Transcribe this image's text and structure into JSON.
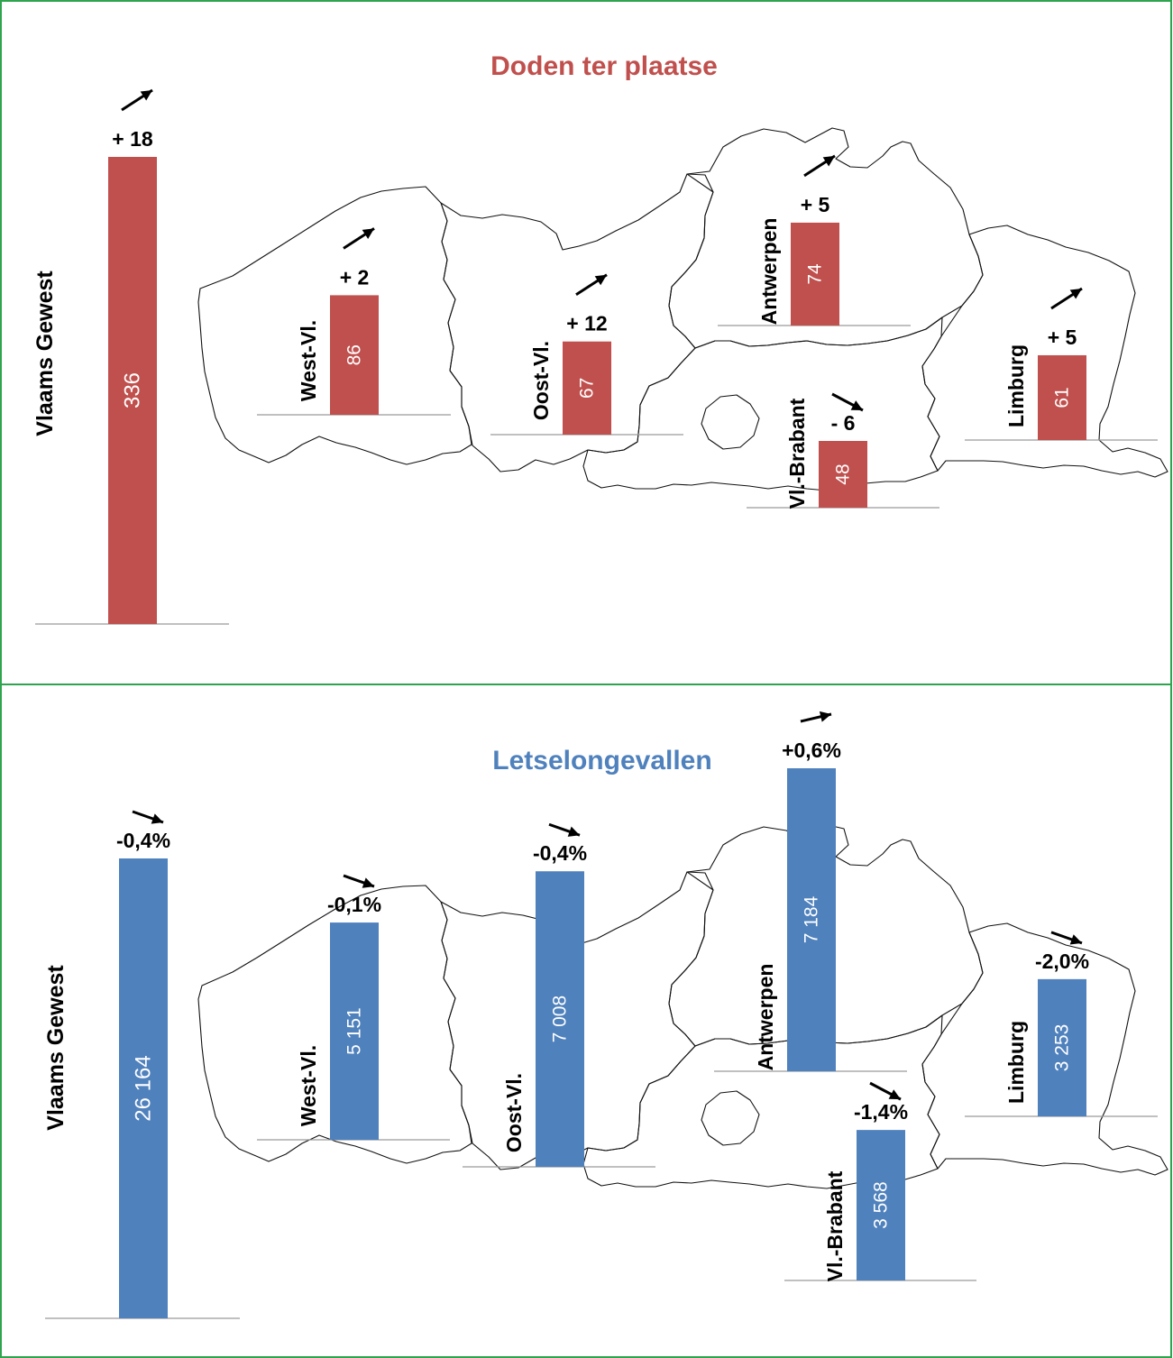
{
  "colors": {
    "deaths": "#c0504d",
    "injuries": "#4f81bd",
    "frame": "#2ea44f"
  },
  "chart_data": [
    {
      "type": "bar",
      "title": "Doden ter plaatse",
      "categories": [
        "Vlaams Gewest",
        "West-Vl.",
        "Oost-Vl.",
        "Antwerpen",
        "Vl.-Brabant",
        "Limburg"
      ],
      "values": [
        336,
        86,
        67,
        74,
        48,
        61
      ],
      "value_labels": [
        "336",
        "86",
        "67",
        "74",
        "48",
        "61"
      ],
      "changes": [
        "+ 18",
        "+ 2",
        "+ 12",
        "+ 5",
        "- 6",
        "+ 5"
      ],
      "trend_icons": [
        "arrow-up-right-icon",
        "arrow-up-right-icon",
        "arrow-up-right-icon",
        "arrow-up-right-icon",
        "arrow-down-right-icon",
        "arrow-up-right-icon"
      ],
      "ylim": [
        0,
        336
      ]
    },
    {
      "type": "bar",
      "title": "Letselongevallen",
      "categories": [
        "Vlaams Gewest",
        "West-Vl.",
        "Oost-Vl.",
        "Antwerpen",
        "Vl.-Brabant",
        "Limburg"
      ],
      "values": [
        26164,
        5151,
        7008,
        7184,
        3568,
        3253
      ],
      "value_labels": [
        "26 164",
        "5 151",
        "7 008",
        "7 184",
        "3 568",
        "3 253"
      ],
      "changes": [
        "-0,4%",
        "-0,1%",
        "-0,4%",
        "+0,6%",
        "-1,4%",
        "-2,0%"
      ],
      "trend_icons": [
        "arrow-slight-down-icon",
        "arrow-slight-down-icon",
        "arrow-slight-down-icon",
        "arrow-slight-up-icon",
        "arrow-down-right-icon",
        "arrow-slight-down-icon"
      ],
      "ylim": [
        0,
        26164
      ]
    }
  ]
}
